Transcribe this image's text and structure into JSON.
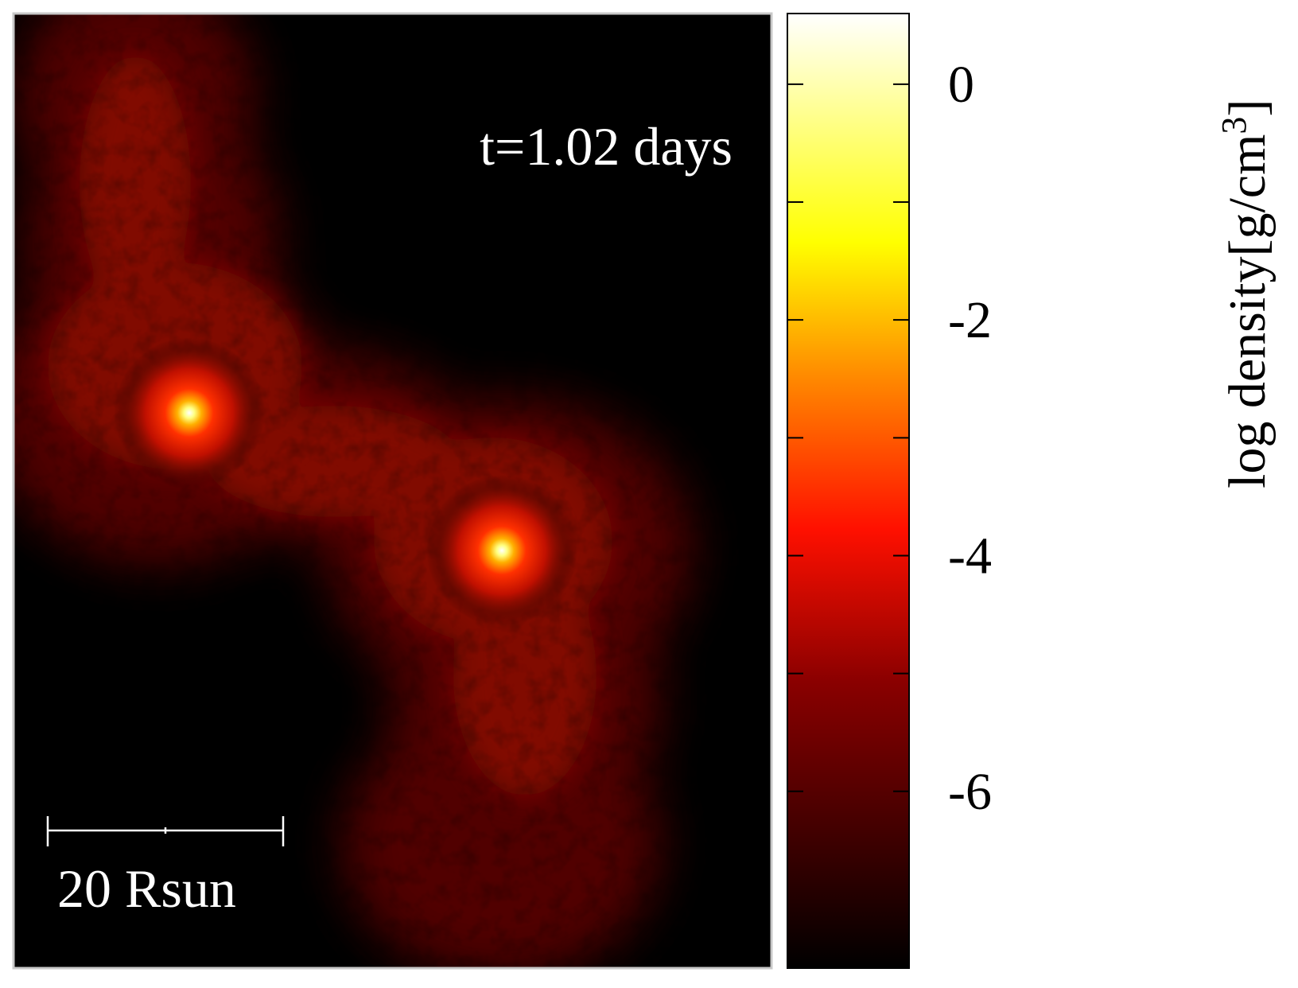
{
  "annotations": {
    "time_label": "t=1.02 days",
    "scale_bar_label": "20 Rsun"
  },
  "colorbar": {
    "label_main": "log density[g/cm",
    "label_sup": "3",
    "label_close": "]",
    "range": [
      -7.5,
      0.6
    ],
    "tick_values": [
      0,
      -2,
      -4,
      -6
    ],
    "tick_labels": [
      "0",
      "-2",
      "-4",
      "-6"
    ],
    "minor_tick_values": [
      -1,
      -3,
      -5
    ],
    "colors": [
      "#000000",
      "#ff0000",
      "#ffff00",
      "#ffffff"
    ]
  },
  "image": {
    "background": "#000000",
    "glow_color": "#d21000",
    "core_color": "#ffffff",
    "frame_color": "#c8c8c8"
  }
}
